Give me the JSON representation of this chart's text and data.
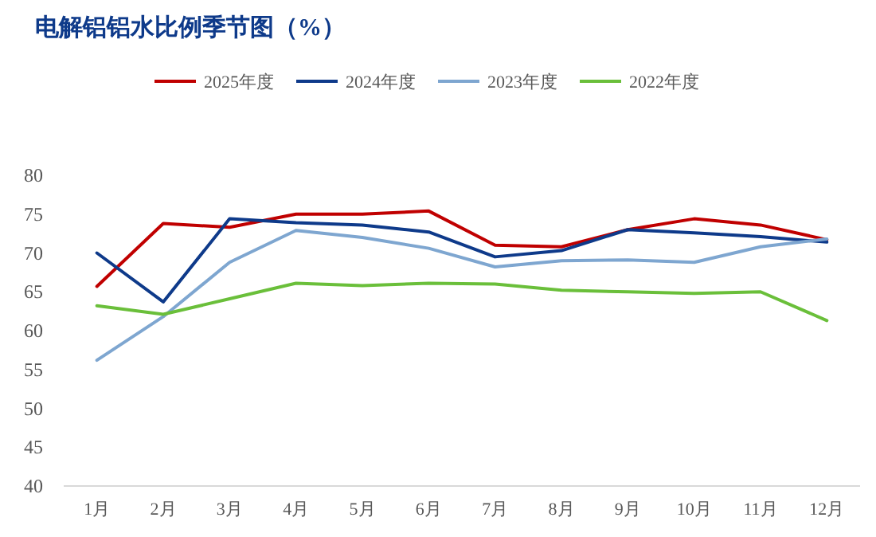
{
  "chart_data": {
    "type": "line",
    "title": "电解铝铝水比例季节图（%）",
    "categories": [
      "1月",
      "2月",
      "3月",
      "4月",
      "5月",
      "6月",
      "7月",
      "8月",
      "9月",
      "10月",
      "11月",
      "12月"
    ],
    "series": [
      {
        "name": "2025年度",
        "color": "#c00000",
        "values": [
          65.7,
          73.8,
          73.3,
          75.0,
          75.0,
          75.4,
          71.0,
          70.8,
          73.0,
          74.4,
          73.6,
          71.7
        ]
      },
      {
        "name": "2024年度",
        "color": "#0e3a8a",
        "values": [
          70.0,
          63.7,
          74.4,
          73.9,
          73.6,
          72.7,
          69.5,
          70.3,
          73.0,
          72.6,
          72.1,
          71.4
        ]
      },
      {
        "name": "2023年度",
        "color": "#7ea6d0",
        "values": [
          56.2,
          61.8,
          68.8,
          72.9,
          72.0,
          70.6,
          68.2,
          69.0,
          69.1,
          68.8,
          70.8,
          71.8
        ]
      },
      {
        "name": "2022年度",
        "color": "#6abf3a",
        "values": [
          63.2,
          62.1,
          64.1,
          66.1,
          65.8,
          66.1,
          66.0,
          65.2,
          65.0,
          64.8,
          65.0,
          61.3
        ]
      }
    ],
    "ylim": [
      40,
      80
    ],
    "yticks": [
      40,
      45,
      50,
      55,
      60,
      65,
      70,
      75,
      80
    ],
    "grid": false,
    "legend": "top",
    "marker": "none",
    "line_style": "solid"
  }
}
